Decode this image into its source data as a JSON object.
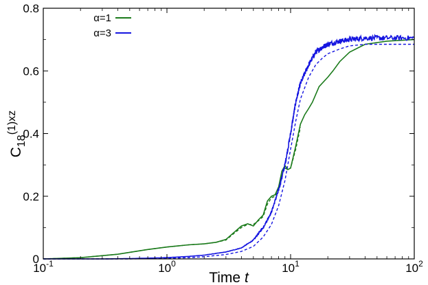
{
  "chart_data": {
    "type": "line",
    "xscale": "log",
    "xlim": [
      0.1,
      100
    ],
    "ylim": [
      0,
      0.8
    ],
    "x_ticks": [
      {
        "base": "10",
        "exp": "-1",
        "value": 0.1
      },
      {
        "base": "10",
        "exp": "0",
        "value": 1
      },
      {
        "base": "10",
        "exp": "1",
        "value": 10
      },
      {
        "base": "10",
        "exp": "2",
        "value": 100
      }
    ],
    "y_ticks": [
      {
        "label": "0",
        "value": 0
      },
      {
        "label": "0.2",
        "value": 0.2
      },
      {
        "label": "0.4",
        "value": 0.4
      },
      {
        "label": "0.6",
        "value": 0.6
      },
      {
        "label": "0.8",
        "value": 0.8
      }
    ],
    "xlabel_main": "Time ",
    "xlabel_var": "t",
    "ylabel_base": "C",
    "ylabel_sub": "18",
    "ylabel_sup": "(1)xz",
    "legend_position": "top-left",
    "series": [
      {
        "name": "α=1",
        "color": "#1a7a1a",
        "style": "solid",
        "noise": 0.0,
        "x": [
          0.1,
          0.2,
          0.4,
          0.7,
          1.0,
          1.5,
          2.0,
          2.5,
          3.0,
          3.5,
          4.0,
          4.5,
          5.0,
          5.5,
          6.0,
          6.5,
          7.0,
          7.5,
          8.0,
          8.5,
          9.0,
          9.5,
          10,
          11,
          12,
          13,
          14,
          15,
          17,
          20,
          22,
          25,
          30,
          40,
          60,
          100
        ],
        "y": [
          0.0,
          0.004,
          0.015,
          0.03,
          0.038,
          0.045,
          0.048,
          0.053,
          0.062,
          0.085,
          0.105,
          0.112,
          0.105,
          0.125,
          0.14,
          0.185,
          0.2,
          0.205,
          0.23,
          0.28,
          0.298,
          0.285,
          0.29,
          0.36,
          0.43,
          0.46,
          0.48,
          0.5,
          0.55,
          0.58,
          0.6,
          0.63,
          0.66,
          0.685,
          0.695,
          0.7
        ]
      },
      {
        "name": "",
        "color": "#1a7a1a",
        "style": "dashed",
        "noise": 0.0,
        "x": [
          0.1,
          0.2,
          0.4,
          0.7,
          1.0,
          1.5,
          2.0,
          2.5,
          3.0,
          3.5,
          4.0,
          4.5,
          5.0,
          5.5,
          6.0,
          6.5,
          7.0,
          7.5,
          8.0,
          8.5,
          9.0,
          9.5,
          10,
          11,
          12
        ],
        "y": [
          0.0,
          0.004,
          0.015,
          0.03,
          0.038,
          0.045,
          0.048,
          0.053,
          0.06,
          0.082,
          0.1,
          0.11,
          0.11,
          0.122,
          0.135,
          0.175,
          0.195,
          0.2,
          0.22,
          0.27,
          0.29,
          0.285,
          0.29,
          0.35,
          0.42
        ]
      },
      {
        "name": "α=3",
        "color": "#1515e0",
        "style": "solid",
        "noise": 0.008,
        "x": [
          0.1,
          0.3,
          0.5,
          1.0,
          1.5,
          2.0,
          3.0,
          4.0,
          5.0,
          6.0,
          7.0,
          8.0,
          9.0,
          10,
          11,
          12,
          14,
          16,
          18,
          20,
          25,
          30,
          40,
          60,
          100
        ],
        "y": [
          0.0,
          0.0,
          0.001,
          0.004,
          0.008,
          0.012,
          0.022,
          0.035,
          0.06,
          0.1,
          0.15,
          0.22,
          0.3,
          0.4,
          0.5,
          0.56,
          0.62,
          0.66,
          0.675,
          0.685,
          0.695,
          0.7,
          0.705,
          0.705,
          0.705
        ]
      },
      {
        "name": "",
        "color": "#1515e0",
        "style": "dashed",
        "noise": 0.0,
        "x": [
          0.1,
          0.3,
          0.5,
          1.0,
          1.5,
          2.0,
          3.0,
          4.0,
          5.0,
          6.0,
          7.0,
          8.0,
          9.0,
          10,
          11,
          12,
          14,
          16,
          18,
          20,
          25,
          30,
          40,
          60,
          100
        ],
        "y": [
          0.0,
          0.0,
          0.0,
          0.002,
          0.004,
          0.007,
          0.014,
          0.024,
          0.04,
          0.07,
          0.11,
          0.17,
          0.25,
          0.35,
          0.44,
          0.51,
          0.58,
          0.62,
          0.64,
          0.655,
          0.67,
          0.68,
          0.685,
          0.685,
          0.685
        ]
      }
    ]
  }
}
